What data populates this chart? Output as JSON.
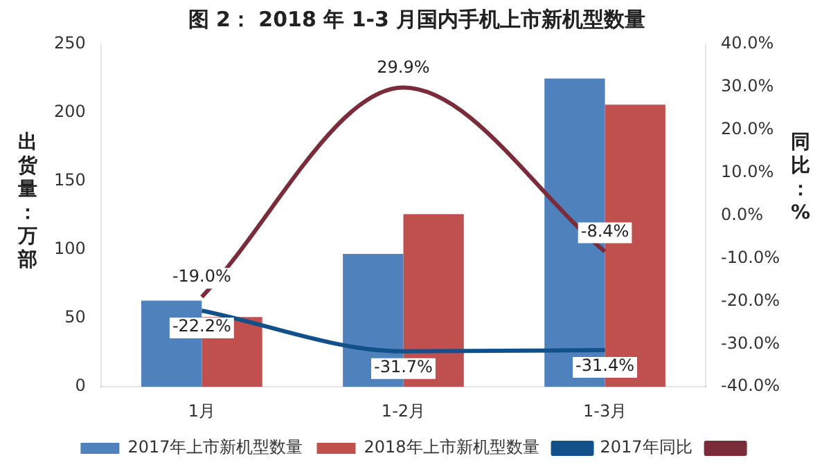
{
  "chart_data": {
    "type": "bar",
    "title": "图 2： 2018 年 1-3 月国内手机上市新机型数量",
    "ylabel": "出货量：万部",
    "y2label": "同比：%",
    "categories": [
      "1月",
      "1-2月",
      "1-3月"
    ],
    "series": [
      {
        "name": "2017年上市新机型数量",
        "color": "#4f81bd",
        "values": [
          63,
          97,
          225
        ]
      },
      {
        "name": "2018年上市新机型数量",
        "color": "#c0504d",
        "values": [
          51,
          126,
          206
        ]
      },
      {
        "name": "2017年同比",
        "type": "line",
        "axis": "y2",
        "color": "#12508a",
        "values": [
          -22.2,
          -31.7,
          -31.4
        ],
        "value_labels": [
          "-22.2%",
          "-31.7%",
          "-31.4%"
        ]
      },
      {
        "type": "line",
        "axis": "y2",
        "color": "#7b2c3a",
        "values": [
          -19.0,
          29.9,
          -8.4
        ],
        "value_labels": [
          "-19.0%",
          "29.9%",
          "-8.4%"
        ]
      }
    ],
    "ylim": [
      0,
      250
    ],
    "yticks": [
      0,
      50,
      100,
      150,
      200,
      250
    ],
    "y2lim": [
      -40,
      40
    ],
    "y2ticks": [
      {
        "value": -40,
        "label": "-40.0%"
      },
      {
        "value": -30,
        "label": "-30.0%"
      },
      {
        "value": -20,
        "label": "-20.0%"
      },
      {
        "value": -10,
        "label": "-10.0%"
      },
      {
        "value": 0,
        "label": "0.0%"
      },
      {
        "value": 10,
        "label": "10.0%"
      },
      {
        "value": 20,
        "label": "20.0%"
      },
      {
        "value": 30,
        "label": "30.0%"
      },
      {
        "value": 40,
        "label": "40.0%"
      }
    ],
    "grid": false,
    "legend": "bottom",
    "marker": "none"
  }
}
